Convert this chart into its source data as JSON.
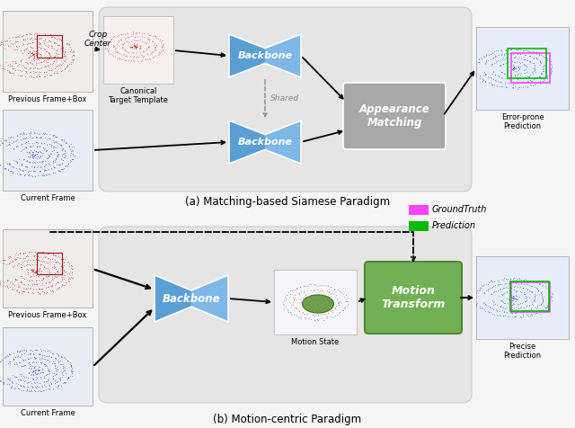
{
  "bg_color": "#f5f5f5",
  "panel_a_bg": "#e5e5e5",
  "panel_b_bg": "#e5e5e5",
  "backbone_color_light": "#7db8e8",
  "backbone_color_dark": "#5a9fd4",
  "appearance_color": "#a8a8a8",
  "motion_transform_color_light": "#72b055",
  "motion_transform_color_dark": "#4e8a30",
  "title_a": "(a) Matching-based Siamese Paradigm",
  "title_b": "(b) Motion-centric Paradigm",
  "label_prev": "Previous Frame+Box",
  "label_curr": "Current Frame",
  "label_canonical": "Canonical\nTarget Template",
  "label_crop": "Crop\nCenter",
  "label_shared": "Shared",
  "label_appearance": "Appearance\nMatching",
  "label_backbone": "Backbone",
  "label_motion_state": "Motion State",
  "label_motion_transform": "Motion\nTransform",
  "label_error_prone": "Error-prone\nPrediction",
  "label_precise": "Precise\nPrediction",
  "legend_gt": "GroundTruth",
  "legend_pred": "Prediction",
  "gt_color": "#ff44ff",
  "pred_color": "#00bb00"
}
